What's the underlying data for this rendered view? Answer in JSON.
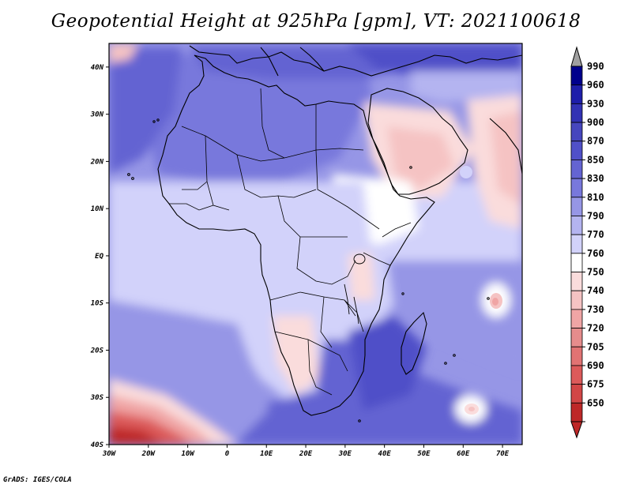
{
  "title": "Geopotential Height at 925hPa [gpm], VT: 2021100618",
  "credit": "GrADS: IGES/COLA",
  "map": {
    "region": "Africa and surrounding oceans",
    "lat_ticks": [
      "40N",
      "30N",
      "20N",
      "10N",
      "EQ",
      "10S",
      "20S",
      "30S",
      "40S"
    ],
    "lon_ticks": [
      "30W",
      "20W",
      "10W",
      "0",
      "10E",
      "20E",
      "30E",
      "40E",
      "50E",
      "60E",
      "70E"
    ]
  },
  "colorbar": {
    "levels": [
      "990",
      "960",
      "930",
      "900",
      "870",
      "850",
      "830",
      "810",
      "790",
      "770",
      "760",
      "750",
      "740",
      "730",
      "720",
      "705",
      "690",
      "675",
      "650"
    ],
    "colors": [
      "#00008c",
      "#1e1eaa",
      "#3232b4",
      "#4646be",
      "#5050c8",
      "#6464d2",
      "#7878dc",
      "#9696e6",
      "#b4b4f0",
      "#d2d2fa",
      "#ffffff",
      "#fadcdc",
      "#f5c3c3",
      "#f0a5a5",
      "#e68c8c",
      "#e17373",
      "#dc5a5a",
      "#d24646",
      "#be2828"
    ],
    "over_color": "#a0a0a0",
    "under_color": "#be2828"
  },
  "chart_data": {
    "type": "heatmap",
    "title": "Geopotential Height at 925hPa [gpm], VT: 2021100618",
    "variable": "Geopotential Height",
    "level": "925hPa",
    "units": "gpm",
    "valid_time": "2021100618",
    "lon_range": [
      "30W",
      "75E"
    ],
    "lat_range": [
      "40S",
      "45N"
    ],
    "colorbar_levels": [
      990,
      960,
      930,
      900,
      870,
      850,
      830,
      810,
      790,
      770,
      760,
      750,
      740,
      730,
      720,
      705,
      690,
      675,
      650
    ]
  }
}
